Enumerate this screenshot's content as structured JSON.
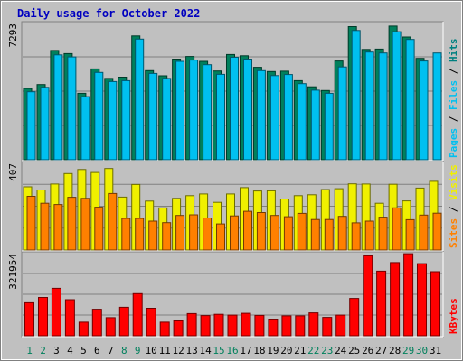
{
  "chart_data": {
    "type": "bar",
    "title": "Daily usage for October 2022",
    "days": [
      "1",
      "2",
      "3",
      "4",
      "5",
      "6",
      "7",
      "8",
      "9",
      "10",
      "11",
      "12",
      "13",
      "14",
      "15",
      "16",
      "17",
      "18",
      "19",
      "20",
      "21",
      "22",
      "23",
      "24",
      "25",
      "26",
      "27",
      "28",
      "29",
      "30",
      "31"
    ],
    "weekend_days": [
      "1",
      "2",
      "8",
      "9",
      "15",
      "16",
      "22",
      "23",
      "29",
      "30"
    ],
    "panels": [
      {
        "id": "hits-files-pages",
        "max_label": "7293",
        "ymax": 7293,
        "side_label": [
          "Pages",
          "Files",
          "Hits"
        ],
        "series": [
          {
            "name": "Hits",
            "color": "#00805c",
            "values": [
              3840,
              4050,
              5890,
              5720,
              3580,
              4890,
              4380,
              4450,
              6670,
              4800,
              4520,
              5420,
              5560,
              5300,
              4780,
              5670,
              5600,
              4980,
              4750,
              4770,
              4260,
              3930,
              3730,
              5320,
              7170,
              5940,
              5960,
              7200,
              6610,
              5460,
              0
            ]
          },
          {
            "name": "Files",
            "color": "#00c0f0",
            "values": [
              3660,
              3900,
              5650,
              5540,
              3400,
              4700,
              4210,
              4260,
              6500,
              4650,
              4380,
              5300,
              5370,
              5120,
              4600,
              5520,
              5420,
              4800,
              4530,
              4590,
              4100,
              3750,
              3580,
              5000,
              6960,
              5800,
              5750,
              6900,
              6480,
              5320,
              5750
            ]
          },
          {
            "name": "Pages",
            "color": "#00c0f0",
            "values": []
          }
        ]
      },
      {
        "id": "visits-sites",
        "max_label": "407",
        "ymax": 407,
        "side_label": [
          "Sites",
          "Visits"
        ],
        "series": [
          {
            "name": "Visits",
            "color": "#f0f000",
            "values": [
              300,
              285,
              313,
              363,
              382,
              368,
              387,
              251,
              311,
              232,
              200,
              245,
              258,
              266,
              226,
              266,
              296,
              280,
              281,
              242,
              258,
              262,
              287,
              291,
              314,
              313,
              222,
              312,
              233,
              294,
              326
            ]
          },
          {
            "name": "Sites",
            "color": "#ff8000",
            "values": [
              255,
              222,
              216,
              250,
              245,
              203,
              268,
              150,
              150,
              137,
              130,
              164,
              167,
              152,
              124,
              162,
              184,
              178,
              164,
              158,
              174,
              145,
              145,
              160,
              129,
              137,
              156,
              200,
              144,
              166,
              175
            ]
          }
        ]
      },
      {
        "id": "kbytes",
        "max_label": "321954",
        "ymax": 321954,
        "side_label": [
          "KBytes"
        ],
        "series": [
          {
            "name": "KBytes",
            "color": "#ff0000",
            "values": [
              131000,
              152000,
              188000,
              143000,
              54000,
              105000,
              72000,
              113000,
              167000,
              109000,
              54000,
              59000,
              88000,
              80000,
              85000,
              82000,
              89000,
              81000,
              63000,
              79000,
              79000,
              91000,
              73000,
              82000,
              148000,
              317000,
              256000,
              290000,
              325000,
              286000,
              254000
            ]
          }
        ]
      }
    ]
  }
}
